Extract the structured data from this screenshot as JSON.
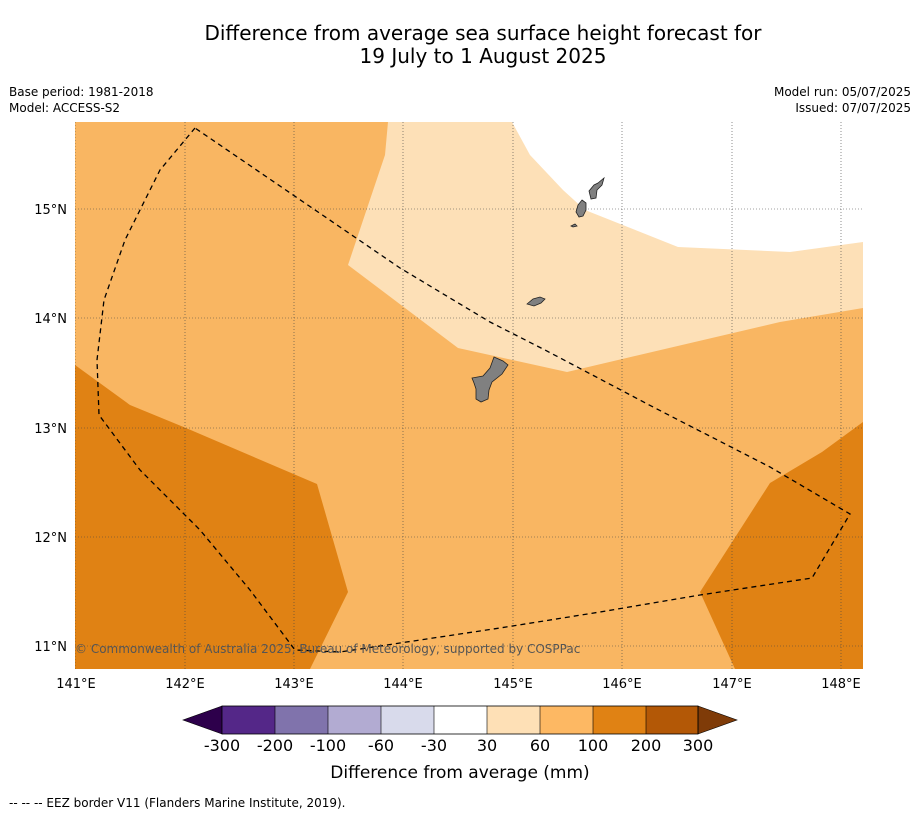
{
  "title": {
    "line1": "Difference from average sea surface height forecast for",
    "line2": "19 July to 1 August 2025"
  },
  "meta_left": {
    "base_period": "Base period: 1981-2018",
    "model": "Model: ACCESS-S2"
  },
  "meta_right": {
    "model_run": "Model run: 05/07/2025",
    "issued": "Issued: 07/07/2025"
  },
  "map": {
    "lon_range": [
      141.0,
      148.2
    ],
    "lat_range": [
      10.8,
      15.8
    ],
    "lon_ticks": [
      "141°E",
      "142°E",
      "143°E",
      "144°E",
      "145°E",
      "146°E",
      "147°E",
      "148°E"
    ],
    "lat_ticks": [
      "11°N",
      "12°N",
      "13°N",
      "14°N",
      "15°N"
    ],
    "copyright": "© Commonwealth of Australia 2025, Bureau of Meteorology, supported by COSPPac",
    "colors": {
      "band_30_60": "#fde0b7",
      "band_60_100": "#f9b662",
      "band_100_200": "#e08214",
      "land": "#808080"
    }
  },
  "colorbar": {
    "label": "Difference from average (mm)",
    "ticks": [
      "-300",
      "-200",
      "-100",
      "-60",
      "-30",
      "30",
      "60",
      "100",
      "200",
      "300"
    ],
    "colors": [
      "#2d004b",
      "#542788",
      "#8073ac",
      "#b2abd2",
      "#d8daeb",
      "#ffffff",
      "#fee0b6",
      "#fdb863",
      "#e08214",
      "#b35806",
      "#7f3b08"
    ]
  },
  "footnote": "-- -- -- EEZ border V11 (Flanders Marine Institute, 2019)."
}
